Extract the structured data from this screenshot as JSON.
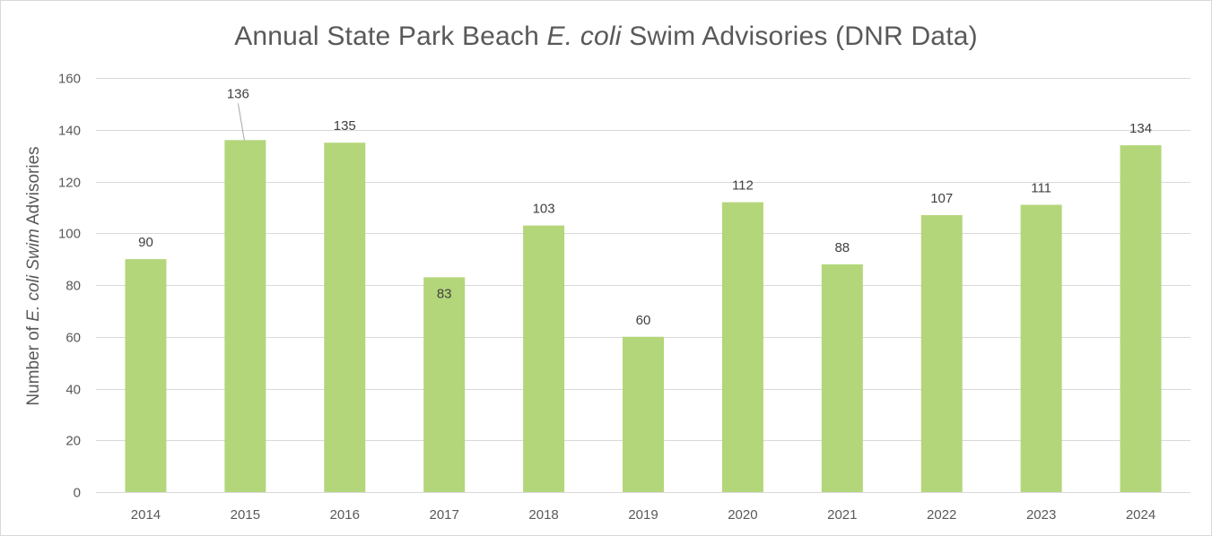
{
  "chart_data": {
    "type": "bar",
    "title_parts": [
      "Annual State Park Beach ",
      "E. coli",
      " Swim Advisories (DNR Data)"
    ],
    "ylabel_parts": [
      "Number of ",
      "E. coli Swim",
      " Advisories"
    ],
    "xlabel": "",
    "categories": [
      "2014",
      "2015",
      "2016",
      "2017",
      "2018",
      "2019",
      "2020",
      "2021",
      "2022",
      "2023",
      "2024"
    ],
    "values": [
      90,
      136,
      135,
      83,
      103,
      60,
      112,
      88,
      107,
      111,
      134
    ],
    "ylim": [
      0,
      160
    ],
    "yticks": [
      0,
      20,
      40,
      60,
      80,
      100,
      120,
      140,
      160
    ],
    "grid": true,
    "legend": "none",
    "data_labels": true
  },
  "colors": {
    "bar": "#b3d67a",
    "grid": "#d9d9d9",
    "text": "#595959",
    "label": "#404040",
    "leader_line": "#a6a6a6"
  }
}
